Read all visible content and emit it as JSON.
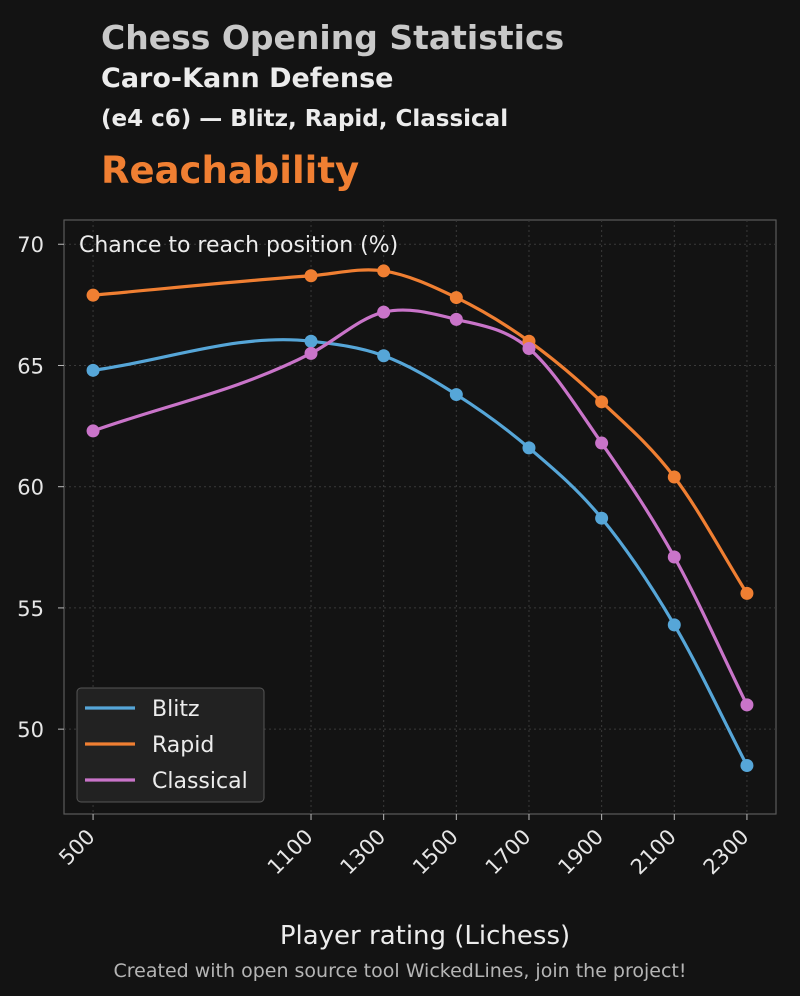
{
  "header": {
    "title": "Chess Opening Statistics",
    "opening": "Caro-Kann Defense",
    "moves_and_modes": "(e4 c6) — Blitz, Rapid, Classical",
    "metric": "Reachability"
  },
  "footer": "Created with open source tool WickedLines, join the project!",
  "chart_data": {
    "type": "line",
    "annotation": "Chance to reach position (%)",
    "xlabel": "Player rating (Lichess)",
    "ylabel": "",
    "x": [
      500,
      1100,
      1300,
      1500,
      1700,
      1900,
      2100,
      2300
    ],
    "xlim": [
      420,
      2380
    ],
    "ylim": [
      46.5,
      71
    ],
    "yticks": [
      50,
      55,
      60,
      65,
      70
    ],
    "grid": true,
    "legend_position": "lower-left",
    "series": [
      {
        "name": "Blitz",
        "color": "#56a6d8",
        "values": [
          64.8,
          66.0,
          65.4,
          63.8,
          61.6,
          58.7,
          54.3,
          48.5
        ]
      },
      {
        "name": "Rapid",
        "color": "#f07f32",
        "values": [
          67.9,
          68.7,
          68.9,
          67.8,
          66.0,
          63.5,
          60.4,
          55.6
        ]
      },
      {
        "name": "Classical",
        "color": "#c974c9",
        "values": [
          62.3,
          65.5,
          67.2,
          66.9,
          65.7,
          61.8,
          57.1,
          51.0
        ]
      }
    ]
  },
  "colors": {
    "background": "#131313",
    "accent": "#f07f32",
    "grid": "#3a3a3a"
  }
}
